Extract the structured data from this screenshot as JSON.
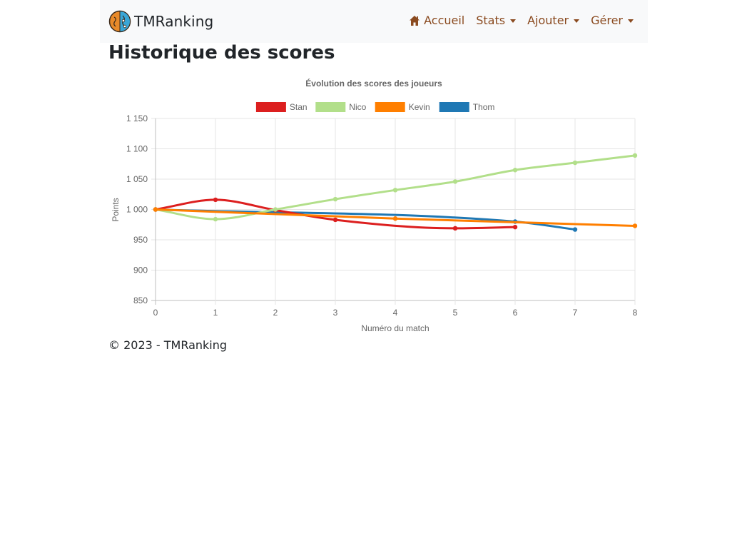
{
  "navbar": {
    "brand": "TMRanking",
    "items": [
      {
        "label": "Accueil",
        "icon": "home-icon",
        "dropdown": false
      },
      {
        "label": "Stats",
        "dropdown": true
      },
      {
        "label": "Ajouter",
        "dropdown": true
      },
      {
        "label": "Gérer",
        "dropdown": true
      }
    ]
  },
  "page": {
    "title": "Historique des scores",
    "footer": "© 2023 - TMRanking"
  },
  "colors": {
    "nav_link": "#8a4a1f",
    "navbar_bg": "#f8f9fa"
  },
  "chart_data": {
    "type": "line",
    "title": "Évolution des scores des joueurs",
    "xlabel": "Numéro du match",
    "ylabel": "Points",
    "xlim": [
      0,
      8
    ],
    "ylim": [
      850,
      1150
    ],
    "x_ticks": [
      "0",
      "1",
      "2",
      "3",
      "4",
      "5",
      "6",
      "7",
      "8"
    ],
    "y_ticks": [
      "850",
      "900",
      "950",
      "1 000",
      "1 050",
      "1 100",
      "1 150"
    ],
    "grid": true,
    "legend_position": "top",
    "series": [
      {
        "name": "Stan",
        "color": "#dc1f1f",
        "points": [
          [
            0,
            1000
          ],
          [
            1,
            1016
          ],
          [
            2,
            999
          ],
          [
            3,
            983
          ],
          [
            5,
            969
          ],
          [
            6,
            971
          ]
        ]
      },
      {
        "name": "Nico",
        "color": "#b2df8a",
        "points": [
          [
            0,
            1000
          ],
          [
            1,
            984
          ],
          [
            2,
            1000
          ],
          [
            3,
            1017
          ],
          [
            4,
            1032
          ],
          [
            5,
            1046
          ],
          [
            6,
            1065
          ],
          [
            7,
            1077
          ],
          [
            8,
            1089
          ]
        ]
      },
      {
        "name": "Kevin",
        "color": "#ff7f00",
        "points": [
          [
            0,
            1000
          ],
          [
            4,
            985
          ],
          [
            8,
            973
          ]
        ]
      },
      {
        "name": "Thom",
        "color": "#1f78b4",
        "points": [
          [
            0,
            1000
          ],
          [
            6,
            980
          ],
          [
            7,
            967
          ]
        ]
      }
    ]
  }
}
